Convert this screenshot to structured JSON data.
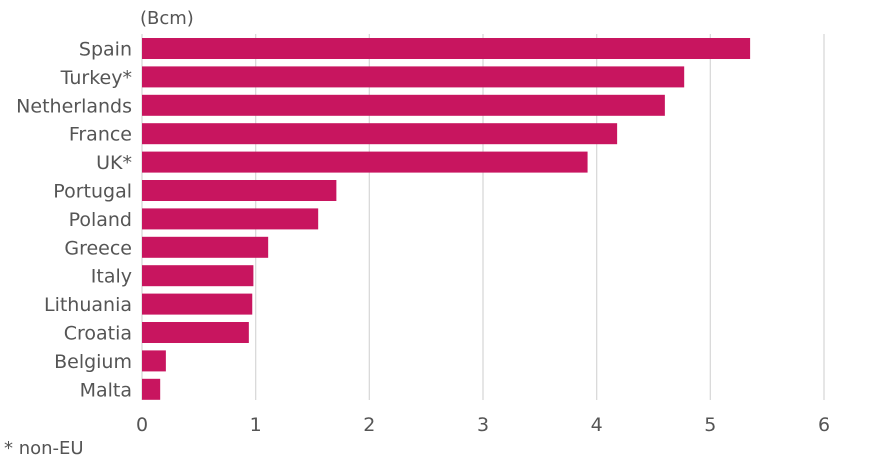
{
  "chart_data": {
    "type": "bar",
    "orientation": "horizontal",
    "unit_label": "(Bcm)",
    "footnote": "* non-EU",
    "categories": [
      "Spain",
      "Turkey*",
      "Netherlands",
      "France",
      "UK*",
      "Portugal",
      "Poland",
      "Greece",
      "Italy",
      "Lithuania",
      "Croatia",
      "Belgium",
      "Malta"
    ],
    "values": [
      5.35,
      4.77,
      4.6,
      4.18,
      3.92,
      1.71,
      1.55,
      1.11,
      0.98,
      0.97,
      0.94,
      0.21,
      0.16
    ],
    "xlim": [
      0,
      6
    ],
    "xticks": [
      "0",
      "1",
      "2",
      "3",
      "4",
      "5",
      "6"
    ],
    "grid": true,
    "bar_color": "#c8155f",
    "grid_color": "#d9d9d9",
    "text_color": "#555555"
  }
}
